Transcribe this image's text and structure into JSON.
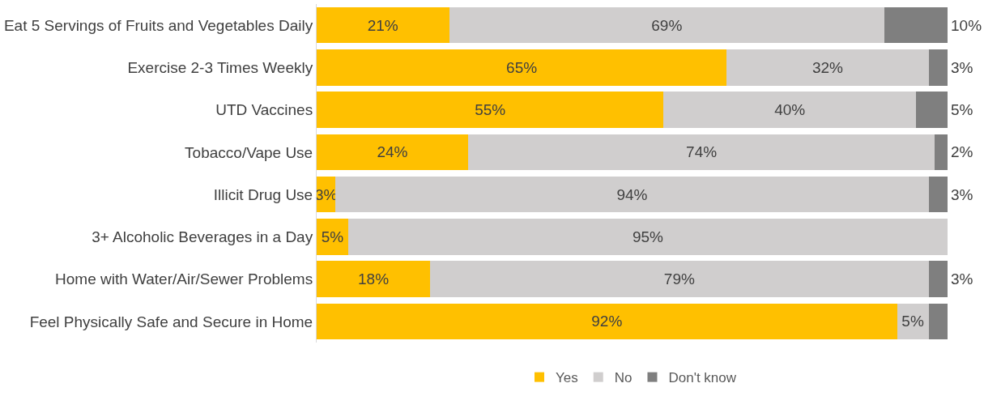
{
  "chart_data": {
    "type": "bar",
    "orientation": "horizontal",
    "stacked": true,
    "legend": "bottom",
    "categories": [
      "Eat 5 Servings of Fruits and Vegetables Daily",
      "Exercise 2-3 Times Weekly",
      "UTD Vaccines",
      "Tobacco/Vape Use",
      "Illicit Drug Use",
      "3+ Alcoholic Beverages in a Day",
      "Home with Water/Air/Sewer Problems",
      "Feel Physically Safe and Secure in Home"
    ],
    "series": [
      {
        "name": "Yes",
        "color": "#ffc000",
        "values": [
          21,
          65,
          55,
          24,
          3,
          5,
          18,
          92
        ],
        "value_labels": [
          "21%",
          "65%",
          "55%",
          "24%",
          "3%",
          "5%",
          "18%",
          "92%"
        ]
      },
      {
        "name": "No",
        "color": "#d0cece",
        "values": [
          69,
          32,
          40,
          74,
          94,
          95,
          79,
          5
        ],
        "value_labels": [
          "69%",
          "32%",
          "40%",
          "74%",
          "94%",
          "95%",
          "79%",
          "5%"
        ]
      },
      {
        "name": "Don't know",
        "color": "#7f7f7f",
        "values": [
          10,
          3,
          5,
          2,
          3,
          null,
          3,
          3
        ],
        "value_labels": [
          "10%",
          "3%",
          "5%",
          "2%",
          "3%",
          null,
          "3%",
          null
        ]
      }
    ]
  }
}
